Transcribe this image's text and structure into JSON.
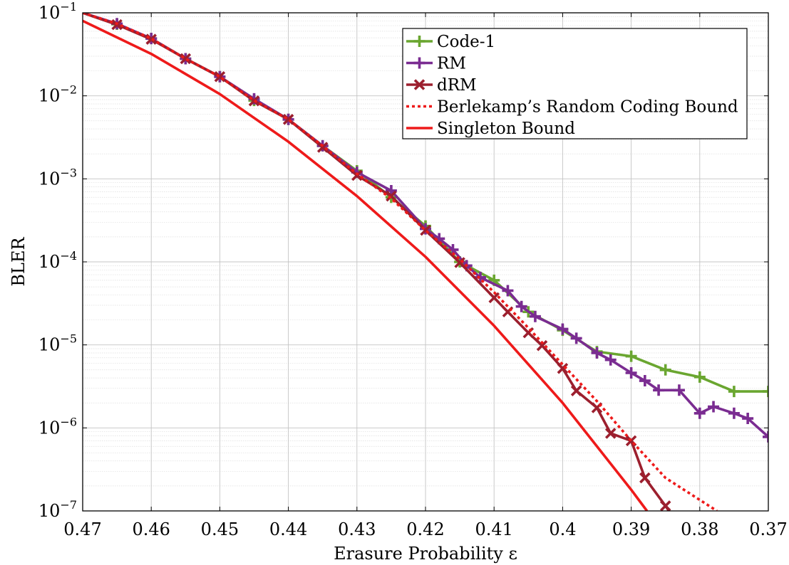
{
  "chart_data": {
    "type": "line",
    "title": "",
    "xlabel": "Erasure Probability ε",
    "ylabel": "BLER",
    "x_reversed": true,
    "y_scale": "log",
    "xlim": [
      0.47,
      0.37
    ],
    "ylim": [
      1e-07,
      0.1
    ],
    "x_ticks": [
      0.47,
      0.46,
      0.45,
      0.44,
      0.43,
      0.42,
      0.41,
      0.4,
      0.39,
      0.38,
      0.37
    ],
    "x_tick_labels": [
      "0.47",
      "0.46",
      "0.45",
      "0.44",
      "0.43",
      "0.42",
      "0.41",
      "0.4",
      "0.39",
      "0.38",
      "0.37"
    ],
    "y_ticks": [
      1e-07,
      1e-06,
      1e-05,
      0.0001,
      0.001,
      0.01,
      0.1
    ],
    "y_tick_labels": [
      {
        "base": "10",
        "exp": "−7"
      },
      {
        "base": "10",
        "exp": "−6"
      },
      {
        "base": "10",
        "exp": "−5"
      },
      {
        "base": "10",
        "exp": "−4"
      },
      {
        "base": "10",
        "exp": "−3"
      },
      {
        "base": "10",
        "exp": "−2"
      },
      {
        "base": "10",
        "exp": "−1"
      }
    ],
    "grid": true,
    "legend_position": "top-right",
    "series": [
      {
        "name": "Code-1",
        "color": "#6aa630",
        "marker": "plus",
        "dashed": false,
        "points": [
          [
            0.47,
            0.1
          ],
          [
            0.465,
            0.073
          ],
          [
            0.46,
            0.049
          ],
          [
            0.455,
            0.028
          ],
          [
            0.45,
            0.017
          ],
          [
            0.445,
            0.0088
          ],
          [
            0.44,
            0.0052
          ],
          [
            0.435,
            0.0025
          ],
          [
            0.43,
            0.00125
          ],
          [
            0.425,
            0.0006
          ],
          [
            0.42,
            0.00027
          ],
          [
            0.415,
            0.0001
          ],
          [
            0.41,
            6e-05
          ],
          [
            0.405,
            2.5e-05
          ],
          [
            0.4,
            1.5e-05
          ],
          [
            0.395,
            8.3e-06
          ],
          [
            0.39,
            7.3e-06
          ],
          [
            0.385,
            5e-06
          ],
          [
            0.38,
            4.1e-06
          ],
          [
            0.375,
            2.75e-06
          ],
          [
            0.37,
            2.75e-06
          ]
        ]
      },
      {
        "name": "RM",
        "color": "#7a2c91",
        "marker": "plus",
        "dashed": false,
        "points": [
          [
            0.47,
            0.1
          ],
          [
            0.465,
            0.074
          ],
          [
            0.46,
            0.049
          ],
          [
            0.455,
            0.028
          ],
          [
            0.45,
            0.017
          ],
          [
            0.445,
            0.0092
          ],
          [
            0.44,
            0.0052
          ],
          [
            0.435,
            0.0025
          ],
          [
            0.43,
            0.0012
          ],
          [
            0.425,
            0.00072
          ],
          [
            0.42,
            0.00025
          ],
          [
            0.418,
            0.00019
          ],
          [
            0.416,
            0.00014
          ],
          [
            0.414,
            9e-05
          ],
          [
            0.412,
            6.5e-05
          ],
          [
            0.408,
            4.5e-05
          ],
          [
            0.406,
            2.9e-05
          ],
          [
            0.404,
            2.2e-05
          ],
          [
            0.4,
            1.55e-05
          ],
          [
            0.398,
            1.2e-05
          ],
          [
            0.395,
            8e-06
          ],
          [
            0.393,
            6.6e-06
          ],
          [
            0.39,
            4.6e-06
          ],
          [
            0.388,
            3.7e-06
          ],
          [
            0.386,
            2.85e-06
          ],
          [
            0.383,
            2.85e-06
          ],
          [
            0.38,
            1.5e-06
          ],
          [
            0.378,
            1.8e-06
          ],
          [
            0.375,
            1.5e-06
          ],
          [
            0.373,
            1.3e-06
          ],
          [
            0.37,
            7.8e-07
          ]
        ]
      },
      {
        "name": "dRM",
        "color": "#9c1f2e",
        "marker": "cross",
        "dashed": false,
        "points": [
          [
            0.47,
            0.1
          ],
          [
            0.465,
            0.072
          ],
          [
            0.46,
            0.048
          ],
          [
            0.455,
            0.028
          ],
          [
            0.45,
            0.017
          ],
          [
            0.445,
            0.0087
          ],
          [
            0.44,
            0.0052
          ],
          [
            0.435,
            0.0024
          ],
          [
            0.43,
            0.0011
          ],
          [
            0.425,
            0.00062
          ],
          [
            0.42,
            0.00024
          ],
          [
            0.415,
            9.8e-05
          ],
          [
            0.41,
            3.7e-05
          ],
          [
            0.408,
            2.5e-05
          ],
          [
            0.405,
            1.4e-05
          ],
          [
            0.403,
            9.8e-06
          ],
          [
            0.4,
            5.2e-06
          ],
          [
            0.398,
            2.8e-06
          ],
          [
            0.395,
            1.75e-06
          ],
          [
            0.393,
            8.6e-07
          ],
          [
            0.39,
            7e-07
          ],
          [
            0.388,
            2.5e-07
          ],
          [
            0.385,
            1.15e-07
          ],
          [
            0.3845,
            1e-07
          ]
        ]
      },
      {
        "name": "Berlekamp’s Random Coding Bound",
        "color": "#ee1a1a",
        "marker": "none",
        "dashed": true,
        "points": [
          [
            0.47,
            0.1
          ],
          [
            0.465,
            0.074
          ],
          [
            0.46,
            0.049
          ],
          [
            0.455,
            0.028
          ],
          [
            0.45,
            0.017
          ],
          [
            0.445,
            0.0088
          ],
          [
            0.44,
            0.0052
          ],
          [
            0.435,
            0.0025
          ],
          [
            0.43,
            0.00115
          ],
          [
            0.425,
            0.00058
          ],
          [
            0.42,
            0.00024
          ],
          [
            0.415,
            0.000108
          ],
          [
            0.41,
            4.3e-05
          ],
          [
            0.405,
            1.6e-05
          ],
          [
            0.4,
            5.8e-06
          ],
          [
            0.395,
            2.1e-06
          ],
          [
            0.39,
            7e-07
          ],
          [
            0.385,
            2.5e-07
          ],
          [
            0.3775,
            1e-07
          ]
        ]
      },
      {
        "name": "Singleton Bound",
        "color": "#ee1a1a",
        "marker": "none",
        "dashed": false,
        "points": [
          [
            0.47,
            0.08
          ],
          [
            0.46,
            0.032
          ],
          [
            0.45,
            0.0105
          ],
          [
            0.44,
            0.0028
          ],
          [
            0.43,
            0.00062
          ],
          [
            0.42,
            0.000115
          ],
          [
            0.41,
            1.7e-05
          ],
          [
            0.4,
            2e-06
          ],
          [
            0.39,
            1.8e-07
          ],
          [
            0.3877,
            1e-07
          ]
        ]
      }
    ]
  }
}
